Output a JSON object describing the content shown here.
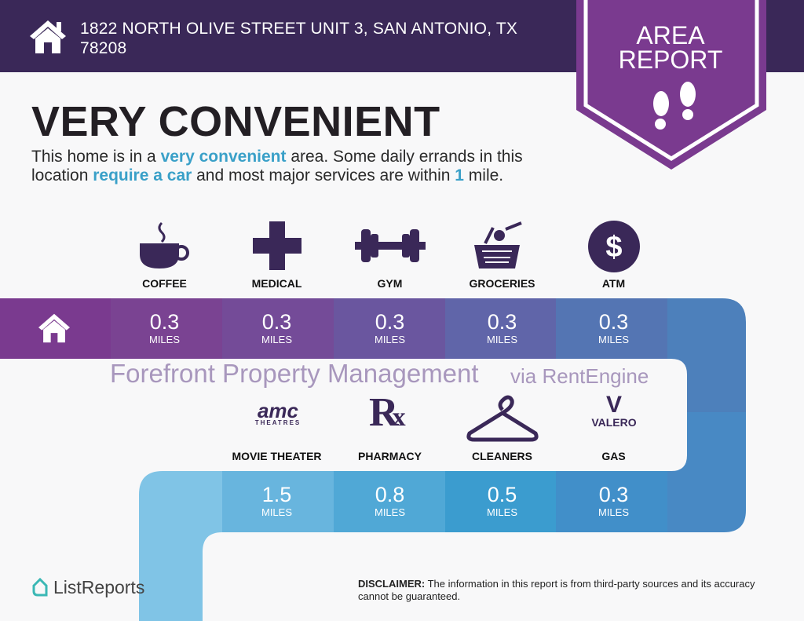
{
  "header": {
    "address": "1822 NORTH OLIVE STREET UNIT 3, SAN ANTONIO, TX 78208",
    "icon": "home-icon"
  },
  "banner": {
    "line1": "AREA",
    "line2": "REPORT",
    "icon": "footprints-icon"
  },
  "rating": {
    "title": "VERY CONVENIENT",
    "desc": {
      "p1": "This home is in a ",
      "h1": "very convenient",
      "p2": " area. Some daily errands in this location ",
      "h2": "require a car",
      "p3": " and most major services are within ",
      "h3": "1",
      "p4": " mile."
    }
  },
  "unit": "MILES",
  "row1": [
    {
      "label": "COFFEE",
      "distance": "0.3",
      "icon": "coffee-cup-icon"
    },
    {
      "label": "MEDICAL",
      "distance": "0.3",
      "icon": "medical-cross-icon"
    },
    {
      "label": "GYM",
      "distance": "0.3",
      "icon": "dumbbell-icon"
    },
    {
      "label": "GROCERIES",
      "distance": "0.3",
      "icon": "grocery-basket-icon"
    },
    {
      "label": "ATM",
      "distance": "0.3",
      "icon": "dollar-icon"
    }
  ],
  "row2": [
    {
      "label": "MOVIE THEATER",
      "distance": "1.5",
      "icon": "amc-theatres-logo",
      "logo_text": "amc THEATRES"
    },
    {
      "label": "PHARMACY",
      "distance": "0.8",
      "icon": "rx-icon"
    },
    {
      "label": "CLEANERS",
      "distance": "0.5",
      "icon": "hanger-icon"
    },
    {
      "label": "GAS",
      "distance": "0.3",
      "icon": "valero-logo",
      "logo_text": "VALERO"
    }
  ],
  "watermark": {
    "line1": "Forefront Property Management",
    "line2": "via RentEngine"
  },
  "footer": {
    "logo": "ListReports",
    "disclaimer_label": "DISCLAIMER:",
    "disclaimer": " The information in this report is from third-party sources and its accuracy cannot be guaranteed."
  },
  "colors": {
    "header": "#3a2858",
    "purple": "#7a3a8f",
    "blue": "#4686c1",
    "accent": "#3aa0c8"
  }
}
